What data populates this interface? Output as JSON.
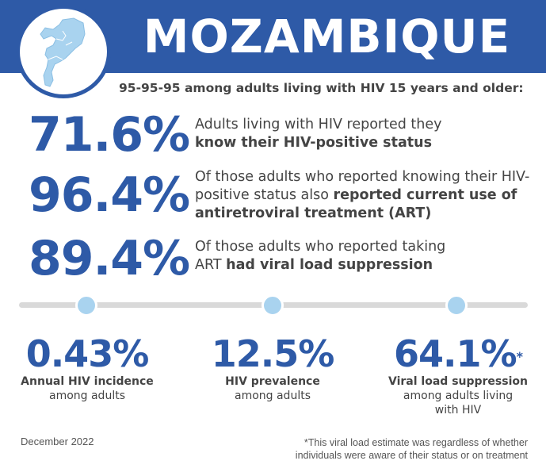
{
  "header": {
    "title": "MOZAMBIQUE",
    "subtitle": "95-95-95 among adults living with HIV 15 years and older:"
  },
  "stats": [
    {
      "value": "71.6%",
      "text_plain": "Adults living with HIV reported they ",
      "text_bold": "know their HIV-positive status",
      "text_after": ""
    },
    {
      "value": "96.4%",
      "text_plain": "Of those adults who reported knowing their HIV-positive status also ",
      "text_bold": "reported current use of antiretroviral treatment (ART)",
      "text_after": ""
    },
    {
      "value": "89.4%",
      "text_plain": "Of those adults who reported taking ART ",
      "text_bold": "had viral load suppression",
      "text_after": ""
    }
  ],
  "bottom": [
    {
      "value": "0.43%",
      "mark": "",
      "label": "Annual HIV incidence",
      "sub": "among adults"
    },
    {
      "value": "12.5%",
      "mark": "",
      "label": "HIV prevalence",
      "sub": "among adults"
    },
    {
      "value": "64.1%",
      "mark": "*",
      "label": "Viral load suppression",
      "sub": "among adults living with HIV"
    }
  ],
  "footer": {
    "date": "December 2022",
    "footnote": "*This viral load estimate was regardless of whether individuals were aware of their status or on treatment"
  },
  "colors": {
    "brand_blue": "#2e5aa7",
    "light_blue": "#a9d3ef",
    "timeline_gray": "#d9d9d9"
  },
  "icons": {
    "map": "mozambique-map-icon"
  }
}
